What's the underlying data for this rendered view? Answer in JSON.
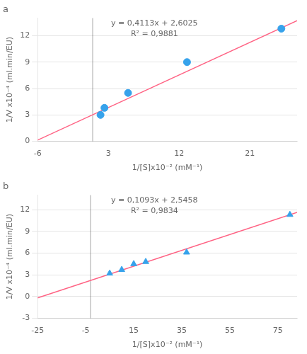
{
  "chart_data": [
    {
      "type": "scatter",
      "title": "a",
      "xlabel": "1/[S]x10⁻² (mM⁻¹)",
      "ylabel": "1/V x10⁻⁴ (ml.min/EU)",
      "annotations": [
        "y = 0,4113x + 2,6025",
        "R² = 0,9881"
      ],
      "vline": 1.0,
      "xlim": [
        -6,
        27
      ],
      "xticks": [
        -6,
        3,
        12,
        21
      ],
      "ylim": [
        0,
        14
      ],
      "yticks": [
        0,
        3,
        6,
        9,
        12
      ],
      "grid": true,
      "series": [
        {
          "type": "scatter",
          "marker": "circle",
          "x": [
            2.0,
            2.5,
            5.5,
            13.0,
            25.0
          ],
          "values": [
            3.0,
            3.8,
            5.5,
            9.0,
            12.8
          ]
        },
        {
          "type": "line",
          "line_style": "solid",
          "x": [
            -6,
            27
          ],
          "values": [
            0.1347,
            13.7076
          ]
        }
      ]
    },
    {
      "type": "scatter",
      "title": "b",
      "xlabel": "1/[S]x10⁻² (mM⁻¹)",
      "ylabel": "1/V x10⁻⁴ (ml.min/EU)",
      "annotations": [
        "y = 0,1093x + 2,5458",
        "R² = 0,9834"
      ],
      "vline": -3.0,
      "xlim": [
        -25,
        83
      ],
      "xticks": [
        -25,
        -5,
        15,
        35,
        55,
        75
      ],
      "ylim": [
        -3,
        14
      ],
      "yticks": [
        -3,
        0,
        3,
        6,
        9,
        12
      ],
      "grid": true,
      "series": [
        {
          "type": "scatter",
          "marker": "triangle",
          "x": [
            5.0,
            10.0,
            15.0,
            20.0,
            37.0,
            80.0
          ],
          "values": [
            3.2,
            3.7,
            4.5,
            4.8,
            6.1,
            11.3
          ]
        },
        {
          "type": "line",
          "line_style": "solid",
          "x": [
            -25,
            83
          ],
          "values": [
            -0.1867,
            11.6177
          ]
        }
      ]
    }
  ]
}
